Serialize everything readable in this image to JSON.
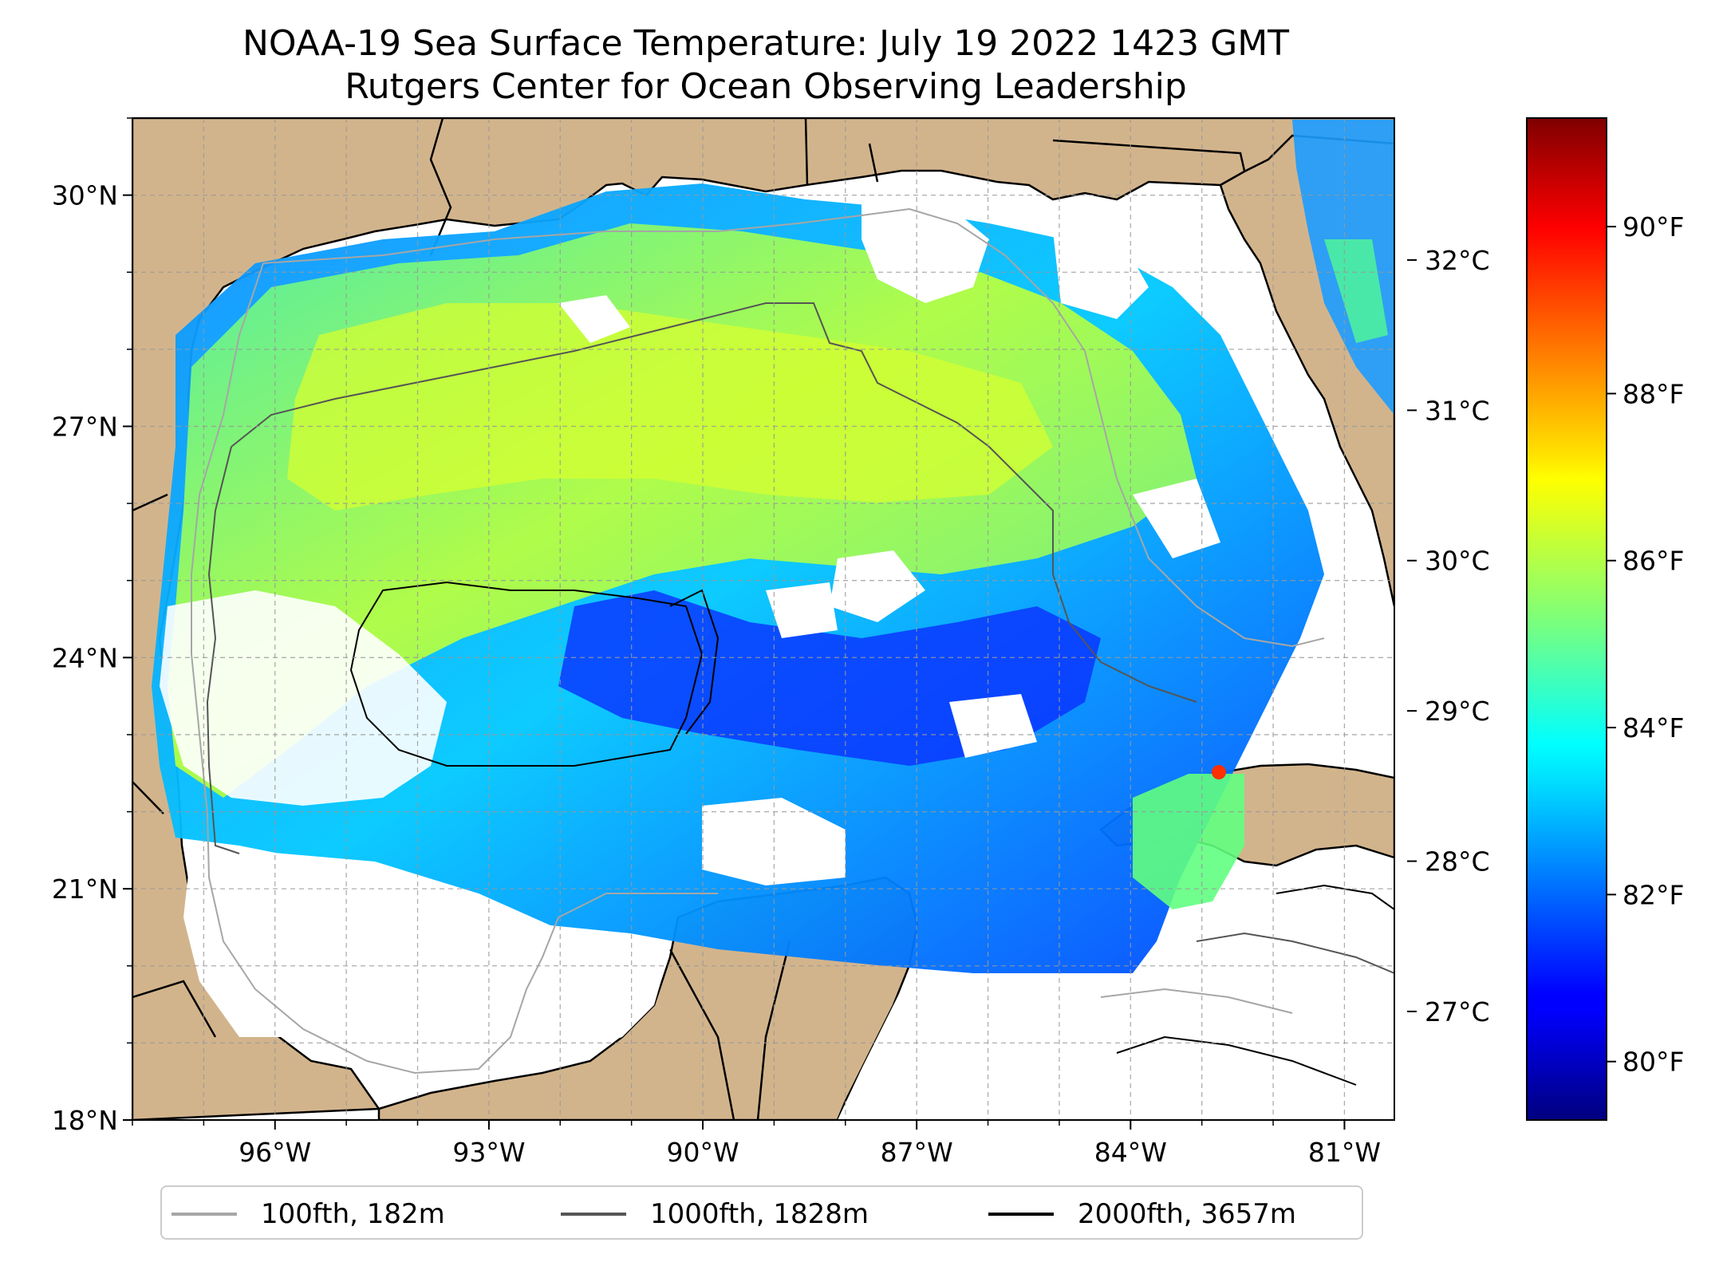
{
  "title": {
    "line1": "NOAA-19 Sea Surface Temperature: July 19 2022 1423 GMT",
    "line2": "Rutgers Center for Ocean Observing Leadership"
  },
  "map": {
    "extent_lon": [
      -98.0,
      -80.3
    ],
    "extent_lat": [
      18.0,
      31.0
    ],
    "lon_ticks": [
      {
        "value": -96,
        "label": "96°W"
      },
      {
        "value": -93,
        "label": "93°W"
      },
      {
        "value": -90,
        "label": "90°W"
      },
      {
        "value": -87,
        "label": "87°W"
      },
      {
        "value": -84,
        "label": "84°W"
      },
      {
        "value": -81,
        "label": "81°W"
      }
    ],
    "lat_ticks": [
      {
        "value": 30,
        "label": "30°N"
      },
      {
        "value": 27,
        "label": "27°N"
      },
      {
        "value": 24,
        "label": "24°N"
      },
      {
        "value": 21,
        "label": "21°N"
      },
      {
        "value": 18,
        "label": "18°N"
      }
    ],
    "gridlines": true,
    "land_color": "#d2b48c",
    "no_data_color": "#ffffff"
  },
  "colorbar": {
    "colormap": "jet",
    "celsius_ticks": [
      {
        "value": 27,
        "label": "27°C"
      },
      {
        "value": 28,
        "label": "28°C"
      },
      {
        "value": 29,
        "label": "29°C"
      },
      {
        "value": 30,
        "label": "30°C"
      },
      {
        "value": 31,
        "label": "31°C"
      },
      {
        "value": 32,
        "label": "32°C"
      }
    ],
    "fahrenheit_ticks": [
      {
        "value": 80,
        "label": "80°F"
      },
      {
        "value": 82,
        "label": "82°F"
      },
      {
        "value": 84,
        "label": "84°F"
      },
      {
        "value": 86,
        "label": "86°F"
      },
      {
        "value": 88,
        "label": "88°F"
      },
      {
        "value": 90,
        "label": "90°F"
      }
    ],
    "range_f": [
      79.3,
      91.3
    ]
  },
  "legend": [
    {
      "label": "100fth, 182m",
      "color": "#a6a6a6"
    },
    {
      "label": "1000fth, 1828m",
      "color": "#555555"
    },
    {
      "label": "2000fth, 3657m",
      "color": "#000000"
    }
  ]
}
